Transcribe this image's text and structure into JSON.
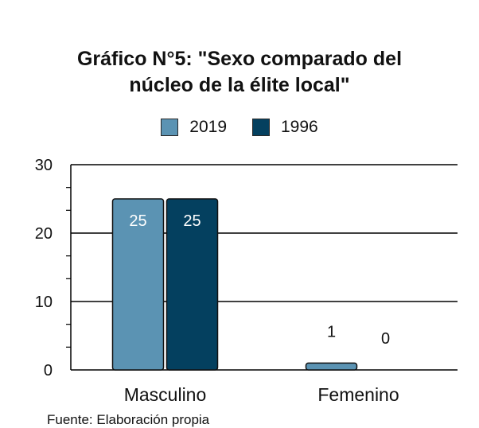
{
  "chart_data": {
    "type": "bar",
    "title_lines": [
      "Gráfico N°5: \"Sexo comparado del",
      "núcleo de la élite local\""
    ],
    "categories": [
      "Masculino",
      "Femenino"
    ],
    "series": [
      {
        "name": "2019",
        "values": [
          25,
          1
        ],
        "color": "#5b93b3"
      },
      {
        "name": "1996",
        "values": [
          25,
          0
        ],
        "color": "#04405f"
      }
    ],
    "ylim": [
      0,
      30
    ],
    "yticks": [
      "0",
      "10",
      "20",
      "30"
    ],
    "grid": true,
    "legend_position": "top"
  },
  "footer": {
    "source": "Fuente: Elaboración propia"
  }
}
